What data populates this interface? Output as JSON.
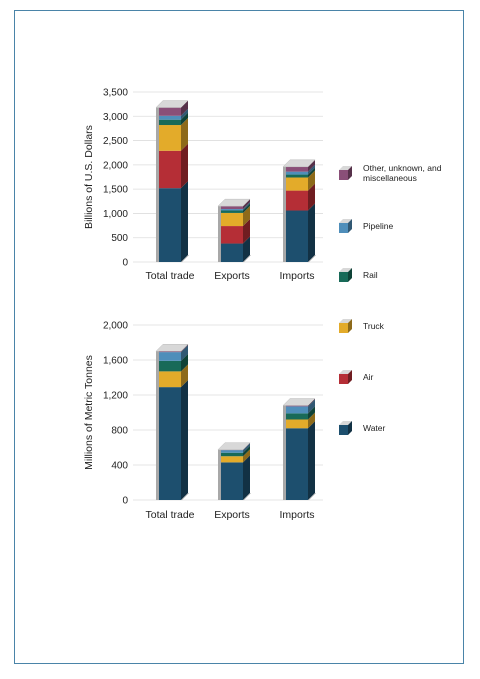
{
  "colors": {
    "water": "#1d4f6e",
    "air": "#b52e36",
    "truck": "#e3ab2a",
    "rail": "#186a58",
    "pipeline": "#4f8eba",
    "other": "#8a4f78",
    "top": "#d8d8d8",
    "side": "#a8a8a8",
    "axis": "#666666",
    "grid": "#dddddd"
  },
  "legend": [
    {
      "key": "other",
      "label": "Other, unknown, and miscellaneous"
    },
    {
      "key": "pipeline",
      "label": "Pipeline"
    },
    {
      "key": "rail",
      "label": "Rail"
    },
    {
      "key": "truck",
      "label": "Truck"
    },
    {
      "key": "air",
      "label": "Air"
    },
    {
      "key": "water",
      "label": "Water"
    }
  ],
  "chart_data": [
    {
      "type": "bar",
      "stacked": true,
      "ylabel": "Billions of U.S. Dollars",
      "ylim": [
        0,
        3500
      ],
      "yticks": [
        0,
        500,
        1000,
        1500,
        2000,
        2500,
        3000,
        3500
      ],
      "ytick_labels": [
        "0",
        "500",
        "1,000",
        "1,500",
        "2,000",
        "2,500",
        "3,000",
        "3,500"
      ],
      "categories": [
        "Total trade",
        "Exports",
        "Imports"
      ],
      "series": [
        {
          "name": "Water",
          "key": "water",
          "values": [
            1520,
            380,
            1060
          ]
        },
        {
          "name": "Air",
          "key": "air",
          "values": [
            770,
            360,
            410
          ]
        },
        {
          "name": "Truck",
          "key": "truck",
          "values": [
            530,
            270,
            270
          ]
        },
        {
          "name": "Rail",
          "key": "rail",
          "values": [
            110,
            50,
            60
          ]
        },
        {
          "name": "Pipeline",
          "key": "pipeline",
          "values": [
            80,
            30,
            60
          ]
        },
        {
          "name": "Other, unknown, and miscellaneous",
          "key": "other",
          "values": [
            170,
            60,
            100
          ]
        }
      ]
    },
    {
      "type": "bar",
      "stacked": true,
      "ylabel": "Millions of Metric Tonnes",
      "ylim": [
        0,
        2000
      ],
      "yticks": [
        0,
        400,
        800,
        1200,
        1600,
        2000
      ],
      "ytick_labels": [
        "0",
        "400",
        "800",
        "1,200",
        "1,600",
        "2,000"
      ],
      "categories": [
        "Total trade",
        "Exports",
        "Imports"
      ],
      "series": [
        {
          "name": "Water",
          "key": "water",
          "values": [
            1290,
            430,
            820
          ]
        },
        {
          "name": "Air",
          "key": "air",
          "values": [
            0,
            0,
            0
          ]
        },
        {
          "name": "Truck",
          "key": "truck",
          "values": [
            180,
            70,
            100
          ]
        },
        {
          "name": "Rail",
          "key": "rail",
          "values": [
            120,
            40,
            70
          ]
        },
        {
          "name": "Pipeline",
          "key": "pipeline",
          "values": [
            100,
            30,
            80
          ]
        },
        {
          "name": "Other, unknown, and miscellaneous",
          "key": "other",
          "values": [
            10,
            5,
            10
          ]
        }
      ]
    }
  ]
}
